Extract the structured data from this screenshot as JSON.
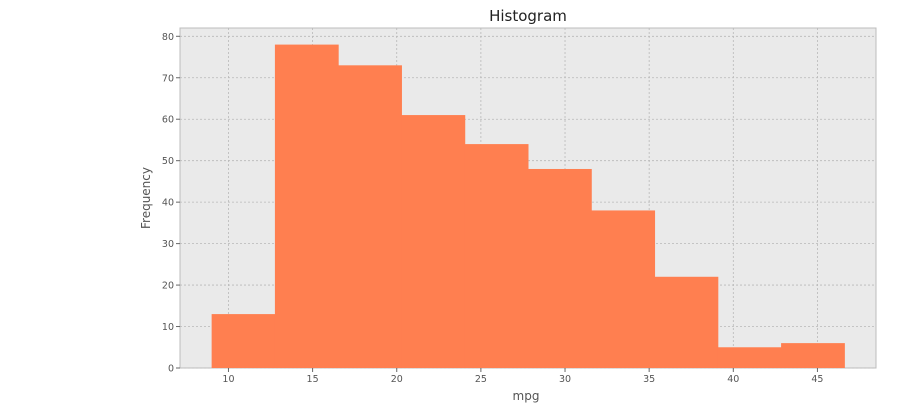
{
  "chart_data": {
    "type": "bar",
    "subtype": "histogram",
    "title": "Histogram",
    "xlabel": "mpg",
    "ylabel": "Frequency",
    "bin_edges": [
      9.0,
      12.76,
      16.52,
      20.28,
      24.04,
      27.8,
      31.56,
      35.32,
      39.08,
      42.84,
      46.6
    ],
    "values": [
      13,
      78,
      73,
      61,
      54,
      48,
      38,
      22,
      5,
      6
    ],
    "xlim": [
      7.12,
      48.48
    ],
    "ylim": [
      0,
      82
    ],
    "xticks": [
      10,
      15,
      20,
      25,
      30,
      35,
      40,
      45
    ],
    "yticks": [
      0,
      10,
      20,
      30,
      40,
      50,
      60,
      70,
      80
    ],
    "grid": true,
    "legend": "none",
    "colors": {
      "bar": "#ff7f50",
      "plot_background": "#eaeaea",
      "grid": "#b8b8b8",
      "frame": "#bcbcbc"
    }
  }
}
